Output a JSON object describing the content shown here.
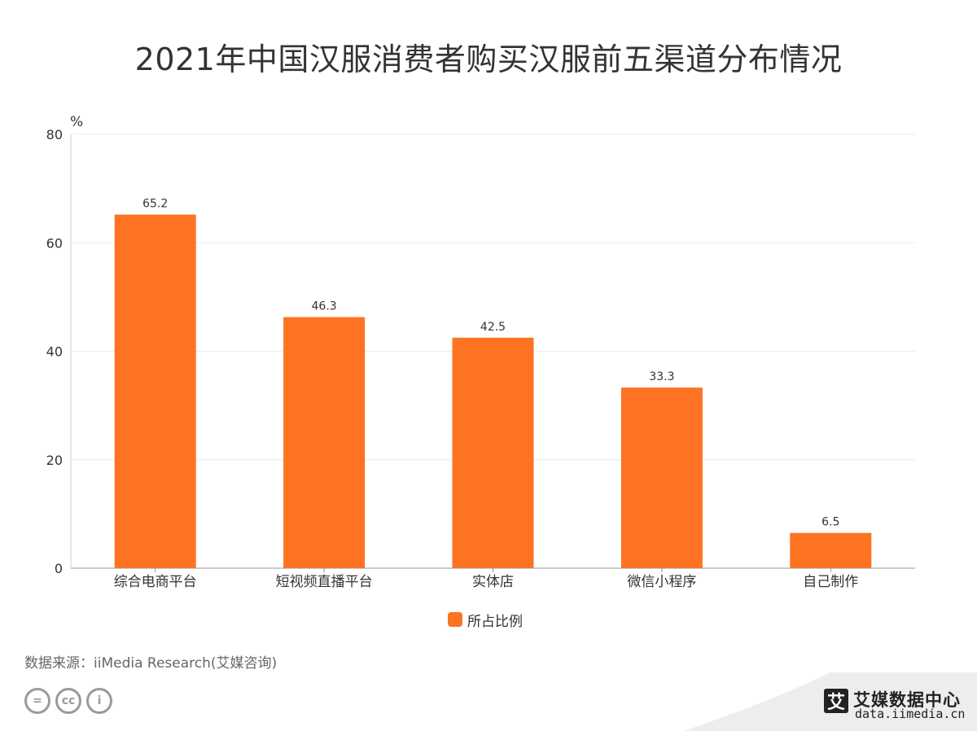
{
  "chart_data": {
    "type": "bar",
    "title": "2021年中国汉服消费者购买汉服前五渠道分布情况",
    "ylabel": "%",
    "xlabel": "",
    "categories": [
      "综合电商平台",
      "短视频直播平台",
      "实体店",
      "微信小程序",
      "自己制作"
    ],
    "series": [
      {
        "name": "所占比例",
        "values": [
          65.2,
          46.3,
          42.5,
          33.3,
          6.5
        ]
      }
    ],
    "yticks": [
      0,
      20,
      40,
      60,
      80
    ],
    "ylim": [
      0,
      80
    ],
    "grid": true,
    "legend": "bottom-center",
    "bar_color": "#fd7322"
  },
  "footer": {
    "source": "数据来源：iiMedia Research(艾媒咨询)",
    "license_icons": [
      "equal-icon",
      "cc-icon",
      "person-icon"
    ],
    "license_glyphs": [
      "=",
      "cc",
      "i"
    ]
  },
  "brand": {
    "logo_char": "艾",
    "name": "艾媒数据中心",
    "url": "data.iimedia.cn"
  }
}
